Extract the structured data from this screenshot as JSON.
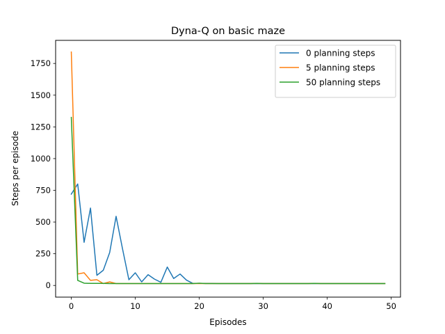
{
  "chart_data": {
    "type": "line",
    "title": "Dyna-Q on basic maze",
    "xlabel": "Episodes",
    "ylabel": "Steps per episode",
    "xlim": [
      -2.45,
      51.45
    ],
    "ylim": [
      -92,
      1932
    ],
    "xticks": [
      0,
      10,
      20,
      30,
      40,
      50
    ],
    "yticks": [
      0,
      250,
      500,
      750,
      1000,
      1250,
      1500,
      1750
    ],
    "grid": false,
    "legend_position": "top-right",
    "x": [
      0,
      1,
      2,
      3,
      4,
      5,
      6,
      7,
      8,
      9,
      10,
      11,
      12,
      13,
      14,
      15,
      16,
      17,
      18,
      19,
      20,
      21,
      22,
      23,
      24,
      25,
      26,
      27,
      28,
      29,
      30,
      31,
      32,
      33,
      34,
      35,
      36,
      37,
      38,
      39,
      40,
      41,
      42,
      43,
      44,
      45,
      46,
      47,
      48,
      49
    ],
    "series": [
      {
        "name": "0 planning steps",
        "color": "#1f77b4",
        "values": [
          720,
          800,
          340,
          610,
          80,
          120,
          260,
          545,
          290,
          45,
          100,
          28,
          85,
          50,
          25,
          145,
          55,
          90,
          42,
          16,
          16,
          16,
          16,
          15,
          15,
          15,
          15,
          15,
          15,
          15,
          15,
          15,
          15,
          15,
          15,
          15,
          15,
          15,
          15,
          15,
          15,
          15,
          15,
          15,
          15,
          15,
          15,
          15,
          15,
          15
        ]
      },
      {
        "name": "5 planning steps",
        "color": "#ff7f0e",
        "values": [
          1840,
          90,
          100,
          40,
          45,
          15,
          28,
          15,
          15,
          15,
          15,
          15,
          15,
          15,
          15,
          15,
          15,
          15,
          15,
          15,
          15,
          15,
          15,
          15,
          15,
          15,
          15,
          15,
          15,
          16,
          15,
          15,
          15,
          15,
          15,
          15,
          15,
          15,
          16,
          15,
          15,
          15,
          15,
          15,
          15,
          15,
          15,
          15,
          15,
          15
        ]
      },
      {
        "name": "50 planning steps",
        "color": "#2ca02c",
        "values": [
          1325,
          40,
          18,
          16,
          16,
          16,
          15,
          15,
          15,
          15,
          15,
          15,
          15,
          15,
          15,
          15,
          15,
          15,
          15,
          15,
          18,
          15,
          15,
          15,
          15,
          15,
          15,
          15,
          15,
          16,
          15,
          15,
          15,
          15,
          15,
          15,
          15,
          15,
          16,
          15,
          15,
          15,
          15,
          15,
          15,
          15,
          15,
          15,
          15,
          15
        ]
      }
    ]
  }
}
